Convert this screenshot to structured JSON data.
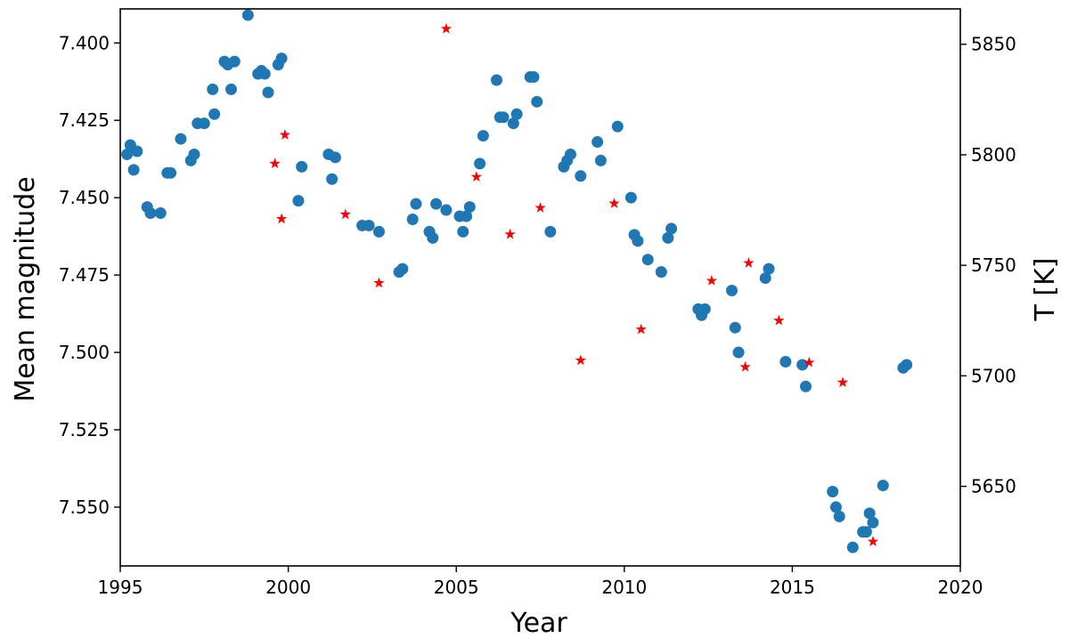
{
  "chart_data": {
    "type": "scatter",
    "xlabel": "Year",
    "ylabel_left": "Mean magnitude",
    "ylabel_right": "T [K]",
    "xlim": [
      1995,
      2020
    ],
    "ylim_left": [
      7.389,
      7.569
    ],
    "ylim_left_inverted": true,
    "ylim_right": [
      5614,
      5866
    ],
    "xticks": [
      1995,
      2000,
      2005,
      2010,
      2015,
      2020
    ],
    "xtick_labels": [
      "1995",
      "2000",
      "2005",
      "2010",
      "2015",
      "2020"
    ],
    "yticks_left": [
      7.4,
      7.425,
      7.45,
      7.475,
      7.5,
      7.525,
      7.55
    ],
    "ytick_left_labels": [
      "7.400",
      "7.425",
      "7.450",
      "7.475",
      "7.500",
      "7.525",
      "7.550"
    ],
    "yticks_right": [
      5650,
      5700,
      5750,
      5800,
      5850
    ],
    "ytick_right_labels": [
      "5650",
      "5700",
      "5750",
      "5800",
      "5850"
    ],
    "grid": false,
    "legend": "none",
    "series": [
      {
        "axis": "left",
        "marker": "circle",
        "color": "#1f77b4",
        "x": [
          1995.2,
          1995.3,
          1995.5,
          1995.4,
          1995.8,
          1995.9,
          1996.2,
          1996.4,
          1996.5,
          1996.8,
          1997.1,
          1997.2,
          1997.3,
          1997.5,
          1997.8,
          1997.75,
          1998.1,
          1998.2,
          1998.3,
          1998.4,
          1998.8,
          1999.1,
          1999.2,
          1999.3,
          1999.4,
          1999.7,
          1999.8,
          2000.3,
          2000.4,
          2001.2,
          2001.3,
          2001.4,
          2002.2,
          2002.4,
          2002.7,
          2003.3,
          2003.4,
          2003.7,
          2003.8,
          2004.2,
          2004.3,
          2004.4,
          2004.7,
          2005.1,
          2005.2,
          2005.3,
          2005.4,
          2005.7,
          2005.8,
          2006.2,
          2006.3,
          2006.4,
          2006.7,
          2006.8,
          2007.2,
          2007.3,
          2007.4,
          2007.8,
          2008.2,
          2008.3,
          2008.4,
          2008.7,
          2009.2,
          2009.3,
          2009.8,
          2010.2,
          2010.3,
          2010.4,
          2010.7,
          2011.1,
          2011.3,
          2011.4,
          2012.2,
          2012.3,
          2012.4,
          2013.2,
          2013.3,
          2013.4,
          2014.2,
          2014.3,
          2014.8,
          2015.3,
          2015.4,
          2016.2,
          2016.3,
          2016.4,
          2016.8,
          2017.1,
          2017.2,
          2017.3,
          2017.4,
          2017.7,
          2018.3,
          2018.4
        ],
        "y": [
          7.436,
          7.433,
          7.435,
          7.441,
          7.453,
          7.455,
          7.455,
          7.442,
          7.442,
          7.431,
          7.438,
          7.436,
          7.426,
          7.426,
          7.423,
          7.415,
          7.406,
          7.407,
          7.415,
          7.406,
          7.391,
          7.41,
          7.409,
          7.41,
          7.416,
          7.407,
          7.405,
          7.451,
          7.44,
          7.436,
          7.444,
          7.437,
          7.459,
          7.459,
          7.461,
          7.474,
          7.473,
          7.457,
          7.452,
          7.461,
          7.463,
          7.452,
          7.454,
          7.456,
          7.461,
          7.456,
          7.453,
          7.439,
          7.43,
          7.412,
          7.424,
          7.424,
          7.426,
          7.423,
          7.411,
          7.411,
          7.419,
          7.461,
          7.44,
          7.438,
          7.436,
          7.443,
          7.432,
          7.438,
          7.427,
          7.45,
          7.462,
          7.464,
          7.47,
          7.474,
          7.463,
          7.46,
          7.486,
          7.488,
          7.486,
          7.48,
          7.492,
          7.5,
          7.476,
          7.473,
          7.503,
          7.504,
          7.511,
          7.545,
          7.55,
          7.553,
          7.563,
          7.558,
          7.558,
          7.552,
          7.555,
          7.543,
          7.505,
          7.504
        ]
      },
      {
        "axis": "right",
        "marker": "star",
        "color": "#ff0000",
        "x": [
          1999.6,
          1999.8,
          1999.9,
          2001.7,
          2002.7,
          2004.7,
          2005.6,
          2006.6,
          2007.5,
          2008.7,
          2009.7,
          2010.5,
          2012.6,
          2013.6,
          2013.7,
          2014.6,
          2015.5,
          2016.5,
          2017.4
        ],
        "y": [
          5796,
          5771,
          5809,
          5773,
          5742,
          5857,
          5790,
          5764,
          5776,
          5707,
          5778,
          5721,
          5743,
          5704,
          5751,
          5725,
          5706,
          5697,
          5625
        ]
      }
    ]
  }
}
